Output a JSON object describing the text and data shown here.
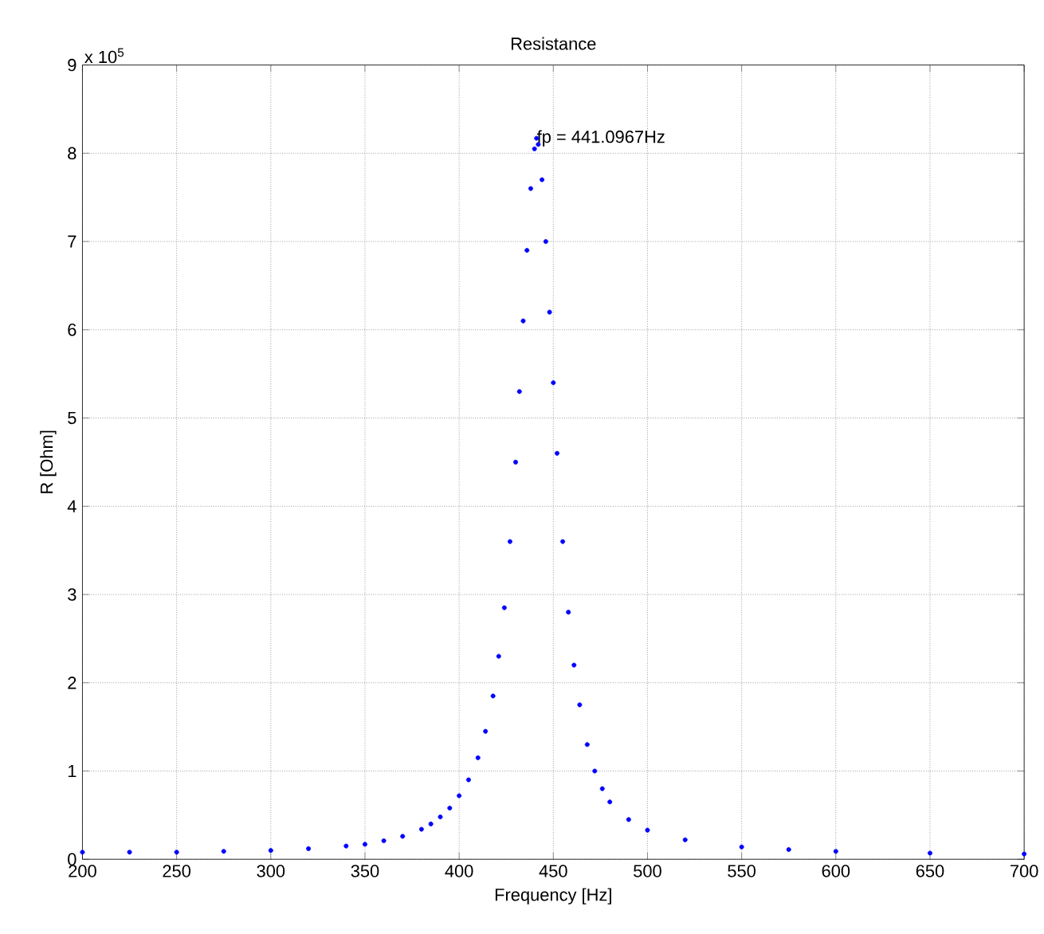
{
  "chart_data": {
    "type": "scatter",
    "title": "Resistance",
    "xlabel": "Frequency [Hz]",
    "ylabel": "R [Ohm]",
    "annotations": [
      "x 10$^{5}$",
      {
        "text": "fp = 441.0967Hz",
        "x": 441.0967,
        "y": 8.17
      }
    ],
    "series": [
      {
        "color": "#0000ff",
        "x": [
          200,
          225,
          250,
          275,
          300,
          320,
          340,
          350,
          360,
          370,
          380,
          385,
          390,
          395,
          400,
          405,
          410,
          414,
          418,
          421,
          424,
          427,
          430,
          432,
          434,
          436,
          438,
          440,
          441.0967,
          442,
          444,
          446,
          448,
          450,
          452,
          455,
          458,
          461,
          464,
          468,
          472,
          476,
          480,
          490,
          500,
          520,
          550,
          575,
          600,
          650,
          700
        ],
        "values": [
          0.08,
          0.08,
          0.08,
          0.09,
          0.1,
          0.12,
          0.15,
          0.17,
          0.21,
          0.26,
          0.34,
          0.4,
          0.48,
          0.58,
          0.72,
          0.9,
          1.15,
          1.45,
          1.85,
          2.3,
          2.85,
          3.6,
          4.5,
          5.3,
          6.1,
          6.9,
          7.6,
          8.05,
          8.17,
          8.1,
          7.7,
          7.0,
          6.2,
          5.4,
          4.6,
          3.6,
          2.8,
          2.2,
          1.75,
          1.3,
          1.0,
          0.8,
          0.65,
          0.45,
          0.33,
          0.22,
          0.14,
          0.11,
          0.09,
          0.07,
          0.06
        ]
      }
    ],
    "xlim": [
      200,
      700
    ],
    "ylim": [
      0,
      9
    ],
    "xticks": [
      200,
      250,
      300,
      350,
      400,
      450,
      500,
      550,
      600,
      650,
      700
    ],
    "yticks": [
      0,
      1,
      2,
      3,
      4,
      5,
      6,
      7,
      8,
      9
    ],
    "grid": true,
    "marker": "circle"
  }
}
